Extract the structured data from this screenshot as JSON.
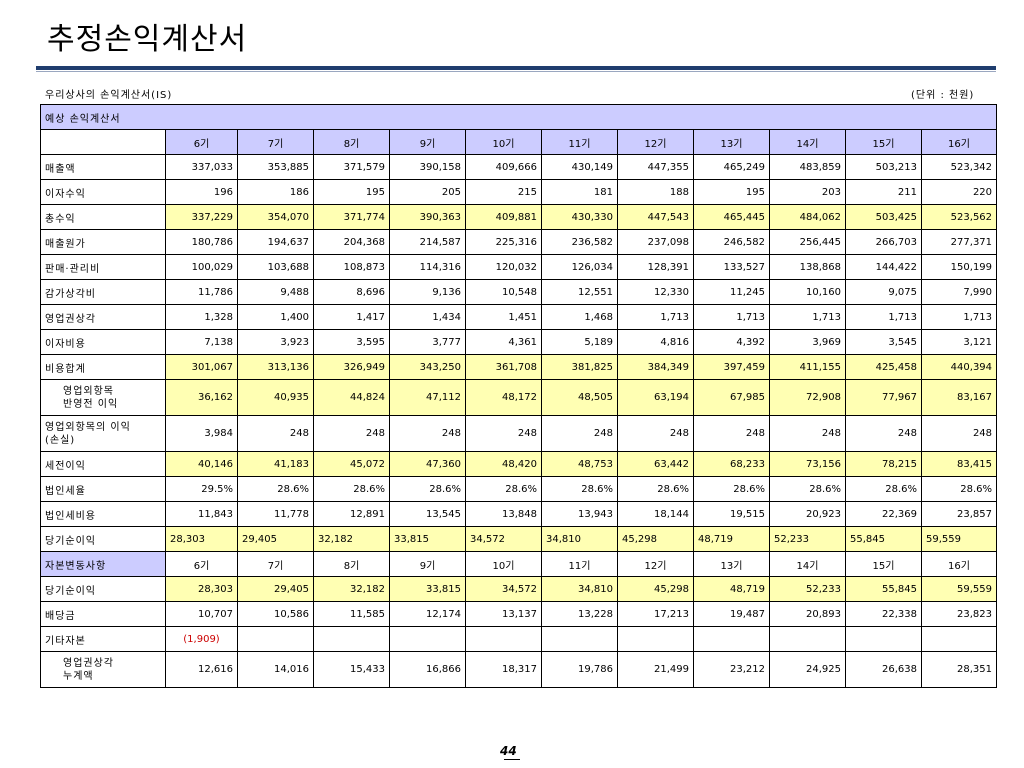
{
  "page_title": "추정손익계산서",
  "caption_left": "우리상사의 손익계산서(IS)",
  "caption_right": "(단위 : 천원)",
  "section1_label": "예상 손익계산서",
  "periods": [
    "6기",
    "7기",
    "8기",
    "9기",
    "10기",
    "11기",
    "12기",
    "13기",
    "14기",
    "15기",
    "16기"
  ],
  "rows": [
    {
      "label": "매출액",
      "values": [
        "337,033",
        "353,885",
        "371,579",
        "390,158",
        "409,666",
        "430,149",
        "447,355",
        "465,249",
        "483,859",
        "503,213",
        "523,342"
      ]
    },
    {
      "label": "이자수익",
      "values": [
        "196",
        "186",
        "195",
        "205",
        "215",
        "181",
        "188",
        "195",
        "203",
        "211",
        "220"
      ]
    },
    {
      "label": "총수익",
      "values": [
        "337,229",
        "354,070",
        "371,774",
        "390,363",
        "409,881",
        "430,330",
        "447,543",
        "465,445",
        "484,062",
        "503,425",
        "523,562"
      ]
    },
    {
      "label": "매출원가",
      "values": [
        "180,786",
        "194,637",
        "204,368",
        "214,587",
        "225,316",
        "236,582",
        "237,098",
        "246,582",
        "256,445",
        "266,703",
        "277,371"
      ]
    },
    {
      "label": "판매·관리비",
      "values": [
        "100,029",
        "103,688",
        "108,873",
        "114,316",
        "120,032",
        "126,034",
        "128,391",
        "133,527",
        "138,868",
        "144,422",
        "150,199"
      ]
    },
    {
      "label": "감가상각비",
      "values": [
        "11,786",
        "9,488",
        "8,696",
        "9,136",
        "10,548",
        "12,551",
        "12,330",
        "11,245",
        "10,160",
        "9,075",
        "7,990"
      ]
    },
    {
      "label": "영업권상각",
      "values": [
        "1,328",
        "1,400",
        "1,417",
        "1,434",
        "1,451",
        "1,468",
        "1,713",
        "1,713",
        "1,713",
        "1,713",
        "1,713"
      ]
    },
    {
      "label": "이자비용",
      "values": [
        "7,138",
        "3,923",
        "3,595",
        "3,777",
        "4,361",
        "5,189",
        "4,816",
        "4,392",
        "3,969",
        "3,545",
        "3,121"
      ]
    },
    {
      "label": "비용합계",
      "values": [
        "301,067",
        "313,136",
        "326,949",
        "343,250",
        "361,708",
        "381,825",
        "384,349",
        "397,459",
        "411,155",
        "425,458",
        "440,394"
      ]
    },
    {
      "label_line1": "영업외항목",
      "label_line2": "반영전 이익",
      "values": [
        "36,162",
        "40,935",
        "44,824",
        "47,112",
        "48,172",
        "48,505",
        "63,194",
        "67,985",
        "72,908",
        "77,967",
        "83,167"
      ]
    },
    {
      "label_line1": "영업외항목의 이익",
      "label_line2": "(손실)",
      "values": [
        "3,984",
        "248",
        "248",
        "248",
        "248",
        "248",
        "248",
        "248",
        "248",
        "248",
        "248"
      ]
    },
    {
      "label": "세전이익",
      "values": [
        "40,146",
        "41,183",
        "45,072",
        "47,360",
        "48,420",
        "48,753",
        "63,442",
        "68,233",
        "73,156",
        "78,215",
        "83,415"
      ]
    },
    {
      "label": "법인세율",
      "values": [
        "29.5%",
        "28.6%",
        "28.6%",
        "28.6%",
        "28.6%",
        "28.6%",
        "28.6%",
        "28.6%",
        "28.6%",
        "28.6%",
        "28.6%"
      ]
    },
    {
      "label": "법인세비용",
      "values": [
        "11,843",
        "11,778",
        "12,891",
        "13,545",
        "13,848",
        "13,943",
        "18,144",
        "19,515",
        "20,923",
        "22,369",
        "23,857"
      ]
    },
    {
      "label": "당기순이익",
      "values": [
        "28,303",
        "29,405",
        "32,182",
        "33,815",
        "34,572",
        "34,810",
        "45,298",
        "48,719",
        "52,233",
        "55,845",
        "59,559"
      ]
    }
  ],
  "section2_label": "자본변동사항",
  "rows2": [
    {
      "label": "당기순이익",
      "values": [
        "28,303",
        "29,405",
        "32,182",
        "33,815",
        "34,572",
        "34,810",
        "45,298",
        "48,719",
        "52,233",
        "55,845",
        "59,559"
      ]
    },
    {
      "label": "배당금",
      "values": [
        "10,707",
        "10,586",
        "11,585",
        "12,174",
        "13,137",
        "13,228",
        "17,213",
        "19,487",
        "20,893",
        "22,338",
        "23,823"
      ]
    },
    {
      "label": "기타자본",
      "values": [
        "(1,909)"
      ]
    },
    {
      "label_line1": "영업권상각",
      "label_line2": "누계액",
      "values": [
        "12,616",
        "14,016",
        "15,433",
        "16,866",
        "18,317",
        "19,786",
        "21,499",
        "23,212",
        "24,925",
        "26,638",
        "28,351"
      ]
    }
  ],
  "page_number": "44",
  "colors": {
    "header_blue": "#ccccff",
    "highlight_yellow": "#ffffb3",
    "rule_navy": "#1f3d6e",
    "negative_red": "#cc0000"
  }
}
